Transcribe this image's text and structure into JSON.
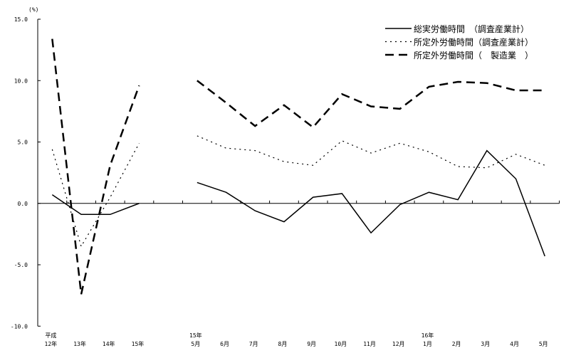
{
  "chart_data": {
    "type": "line",
    "unit_label": "(%)",
    "ylim": [
      -10,
      15
    ],
    "y_ticks": [
      "15.0",
      "10.0",
      "5.0",
      "0.0",
      "-5.0",
      "-10.0"
    ],
    "y_tick_values": [
      15,
      10,
      5,
      0,
      -5,
      -10
    ],
    "x_labels_top": [
      "平成",
      "",
      "",
      "",
      "15年",
      "",
      "",
      "",
      "",
      "",
      "",
      "",
      "16年",
      "",
      "",
      "",
      ""
    ],
    "x_labels": [
      "12年",
      "13年",
      "14年",
      "15年",
      "5月",
      "6月",
      "7月",
      "8月",
      "9月",
      "10月",
      "11月",
      "12月",
      "1月",
      "2月",
      "3月",
      "4月",
      "5月"
    ],
    "segment_break_after_index": 3,
    "grid": false,
    "legend_position": "top-right",
    "series": [
      {
        "name": "総実労働時間　（調査産業計）",
        "style": "solid",
        "values": [
          0.7,
          -0.9,
          -0.9,
          0.0,
          1.7,
          0.9,
          -0.6,
          -1.5,
          0.5,
          0.8,
          -2.4,
          -0.1,
          0.9,
          0.3,
          4.3,
          2.0,
          -4.3
        ]
      },
      {
        "name": "所定外労働時間（調査産業計）",
        "style": "dotted",
        "values": [
          4.4,
          -3.5,
          0.5,
          4.9,
          5.5,
          4.5,
          4.3,
          3.4,
          3.1,
          5.1,
          4.1,
          4.9,
          4.2,
          3.0,
          2.9,
          4.0,
          3.1
        ]
      },
      {
        "name": "所定外労働時間（　製造業　）",
        "style": "dashed",
        "values": [
          13.4,
          -7.4,
          3.1,
          9.6,
          10.0,
          8.2,
          6.3,
          8.0,
          6.2,
          8.9,
          7.9,
          7.7,
          9.5,
          9.9,
          9.8,
          9.2,
          9.2
        ]
      }
    ]
  }
}
